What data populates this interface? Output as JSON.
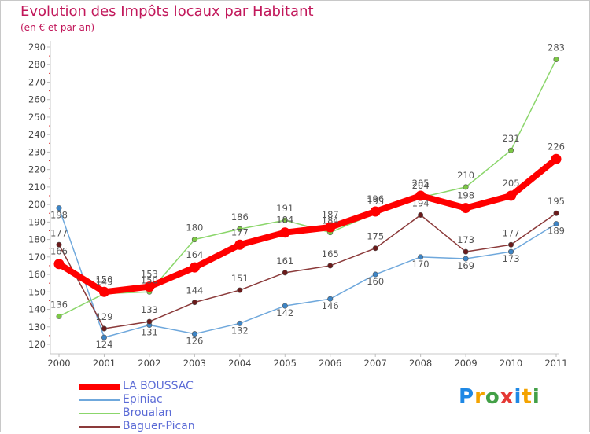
{
  "chart_data": {
    "type": "line",
    "title": "Evolution des Impôts locaux par Habitant",
    "subtitle": "(en € et par an)",
    "xlabel": "",
    "ylabel": "",
    "x": [
      "2000",
      "2001",
      "2002",
      "2003",
      "2004",
      "2005",
      "2006",
      "2007",
      "2008",
      "2009",
      "2010",
      "2011"
    ],
    "ylim": [
      120,
      290
    ],
    "yticks": [
      120,
      130,
      140,
      150,
      160,
      170,
      180,
      190,
      200,
      210,
      220,
      230,
      240,
      250,
      260,
      270,
      280,
      290
    ],
    "grid": false,
    "legend_position": "bottom-left",
    "series": [
      {
        "name": "LA BOUSSAC",
        "color": "#ff0000",
        "marker_color": "#ff0000",
        "values": [
          166,
          150,
          153,
          164,
          177,
          184,
          187,
          196,
          205,
          198,
          205,
          226
        ]
      },
      {
        "name": "Epiniac",
        "color": "#6fa8dc",
        "marker_color": "#3d85c6",
        "values": [
          198,
          124,
          131,
          126,
          132,
          142,
          146,
          160,
          170,
          169,
          173,
          189
        ]
      },
      {
        "name": "Broualan",
        "color": "#8bd66b",
        "marker_color": "#7cc845",
        "values": [
          136,
          149,
          150,
          180,
          186,
          191,
          184,
          195,
          204,
          210,
          231,
          283
        ]
      },
      {
        "name": "Baguer-Pican",
        "color": "#8b3a3a",
        "marker_color": "#6b1a1a",
        "values": [
          177,
          129,
          133,
          144,
          151,
          161,
          165,
          175,
          194,
          173,
          177,
          195
        ]
      }
    ]
  },
  "logo": {
    "letters": [
      "P",
      "r",
      "o",
      "x",
      "i",
      "t",
      "i"
    ],
    "colors": [
      "#1e88e5",
      "#f4a300",
      "#43a047",
      "#e53935",
      "#1e88e5",
      "#f4a300",
      "#43a047"
    ]
  }
}
